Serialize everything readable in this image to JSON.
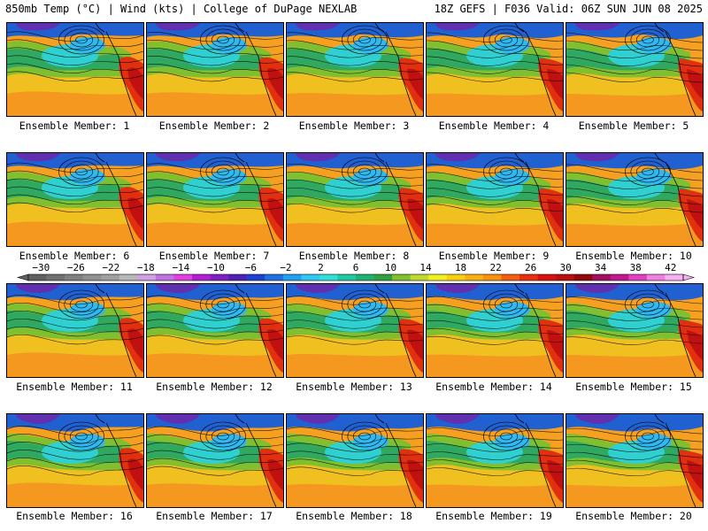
{
  "header": {
    "left_title": "850mb Temp (°C) | Wind (kts) | College of DuPage NEXLAB",
    "right_title": "18Z GEFS | F036 Valid: 06Z SUN JUN 08 2025"
  },
  "panel_label_prefix": "Ensemble Member:",
  "members": [
    {
      "label": "Ensemble Member: 1"
    },
    {
      "label": "Ensemble Member: 2"
    },
    {
      "label": "Ensemble Member: 3"
    },
    {
      "label": "Ensemble Member: 4"
    },
    {
      "label": "Ensemble Member: 5"
    },
    {
      "label": "Ensemble Member: 6"
    },
    {
      "label": "Ensemble Member: 7"
    },
    {
      "label": "Ensemble Member: 8"
    },
    {
      "label": "Ensemble Member: 9"
    },
    {
      "label": "Ensemble Member: 10"
    },
    {
      "label": "Ensemble Member: 11"
    },
    {
      "label": "Ensemble Member: 12"
    },
    {
      "label": "Ensemble Member: 13"
    },
    {
      "label": "Ensemble Member: 14"
    },
    {
      "label": "Ensemble Member: 15"
    },
    {
      "label": "Ensemble Member: 16"
    },
    {
      "label": "Ensemble Member: 17"
    },
    {
      "label": "Ensemble Member: 18"
    },
    {
      "label": "Ensemble Member: 19"
    },
    {
      "label": "Ensemble Member: 20"
    }
  ],
  "colorbar": {
    "tick_labels": [
      "−30",
      "−26",
      "−22",
      "−18",
      "−14",
      "−10",
      "−6",
      "−2",
      "2",
      "6",
      "10",
      "14",
      "18",
      "22",
      "26",
      "30",
      "34",
      "38",
      "42"
    ],
    "colors": [
      "#606060",
      "#707070",
      "#808080",
      "#909090",
      "#a0a0a0",
      "#b8b8b8",
      "#d0a0e0",
      "#c070e0",
      "#e040e0",
      "#b020d0",
      "#8020c0",
      "#5020b0",
      "#2040d0",
      "#2070e0",
      "#20a0f0",
      "#30c8f0",
      "#30e0d8",
      "#20c8a0",
      "#20b070",
      "#30a040",
      "#80c030",
      "#c0d830",
      "#f0f020",
      "#f8d010",
      "#f8b010",
      "#f89010",
      "#f06010",
      "#e83010",
      "#d81010",
      "#b81010",
      "#900808",
      "#a01060",
      "#c01890",
      "#e040c0",
      "#f080e0",
      "#f8b0f0"
    ]
  }
}
